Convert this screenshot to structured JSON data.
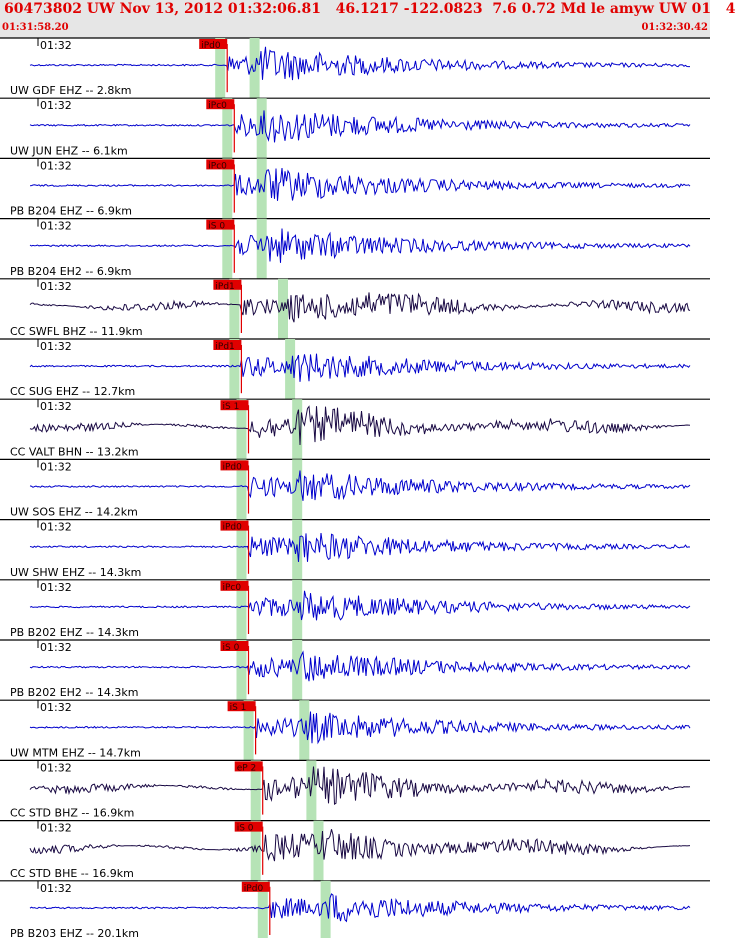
{
  "header": {
    "title": "60473802 UW Nov 13, 2012 01:32:06.81   46.1217 -122.0823  7.6 0.72 Md le amyw UW 01   4",
    "start_time": "01:31:58.20",
    "end_time": "01:32:30.42"
  },
  "colors": {
    "header_bg": "#e6e6e6",
    "header_text": "#e00000",
    "trace_ehz": "#0000cc",
    "trace_broadband": "#1a0a44",
    "pick_label_bg": "#e00000",
    "window_band": "#b6e3b6"
  },
  "traces": [
    {
      "label": "UW GDF EHZ -- 2.8km",
      "time": "01:32",
      "pick": "iPd0",
      "color": "blue",
      "p_pos": 0.32,
      "s_pos": 0.36
    },
    {
      "label": "UW JUN EHZ -- 6.1km",
      "time": "01:32",
      "pick": "iPc0",
      "color": "blue",
      "p_pos": 0.33,
      "s_pos": 0.37
    },
    {
      "label": "PB B204 EHZ -- 6.9km",
      "time": "01:32",
      "pick": "iPc0",
      "color": "blue",
      "p_pos": 0.33,
      "s_pos": 0.37
    },
    {
      "label": "PB B204 EH2 -- 6.9km",
      "time": "01:32",
      "pick": "iS 0",
      "color": "blue",
      "p_pos": 0.33,
      "s_pos": 0.37
    },
    {
      "label": "CC SWFL BHZ -- 11.9km",
      "time": "01:32",
      "pick": "iPd1",
      "color": "dark",
      "p_pos": 0.34,
      "s_pos": 0.4
    },
    {
      "label": "CC SUG EHZ -- 12.7km",
      "time": "01:32",
      "pick": "iPd1",
      "color": "blue",
      "p_pos": 0.34,
      "s_pos": 0.41
    },
    {
      "label": "CC VALT BHN -- 13.2km",
      "time": "01:32",
      "pick": "iS 1",
      "color": "dark",
      "p_pos": 0.35,
      "s_pos": 0.42
    },
    {
      "label": "UW SOS EHZ -- 14.2km",
      "time": "01:32",
      "pick": "iPd0",
      "color": "blue",
      "p_pos": 0.35,
      "s_pos": 0.42
    },
    {
      "label": "UW SHW EHZ -- 14.3km",
      "time": "01:32",
      "pick": "iPd0",
      "color": "blue",
      "p_pos": 0.35,
      "s_pos": 0.42
    },
    {
      "label": "PB B202 EHZ -- 14.3km",
      "time": "01:32",
      "pick": "iPc0",
      "color": "blue",
      "p_pos": 0.35,
      "s_pos": 0.42
    },
    {
      "label": "PB B202 EH2 -- 14.3km",
      "time": "01:32",
      "pick": "iS 0",
      "color": "blue",
      "p_pos": 0.35,
      "s_pos": 0.42
    },
    {
      "label": "UW MTM EHZ -- 14.7km",
      "time": "01:32",
      "pick": "iS 1",
      "color": "blue",
      "p_pos": 0.36,
      "s_pos": 0.43
    },
    {
      "label": "CC STD BHZ -- 16.9km",
      "time": "01:32",
      "pick": "eP 2",
      "color": "dark",
      "p_pos": 0.37,
      "s_pos": 0.44
    },
    {
      "label": "CC STD BHE -- 16.9km",
      "time": "01:32",
      "pick": "iS 0",
      "color": "dark",
      "p_pos": 0.37,
      "s_pos": 0.45
    },
    {
      "label": "PB B203 EHZ -- 20.1km",
      "time": "01:32",
      "pick": "iPd0",
      "color": "blue",
      "p_pos": 0.38,
      "s_pos": 0.46
    }
  ]
}
